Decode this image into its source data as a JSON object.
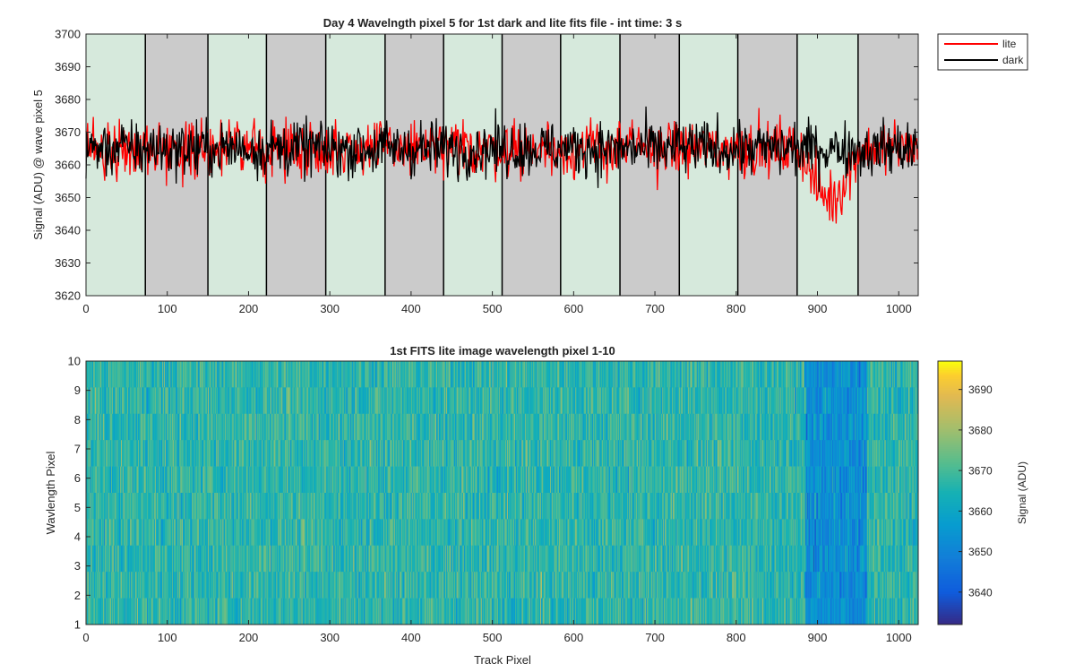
{
  "chart_data": [
    {
      "type": "line",
      "title": "Day 4 Wavelngth pixel 5 for 1st dark and lite fits file - int time: 3 s",
      "xlabel": "",
      "ylabel": "Signal (ADU) @ wave pixel 5",
      "xlim": [
        0,
        1024
      ],
      "ylim": [
        3620,
        3700
      ],
      "xticks": [
        0,
        100,
        200,
        300,
        400,
        500,
        600,
        700,
        800,
        900,
        1000
      ],
      "yticks": [
        3620,
        3630,
        3640,
        3650,
        3660,
        3670,
        3680,
        3690,
        3700
      ],
      "xtick_labels": [
        "0",
        "100",
        "200",
        "300",
        "400",
        "500",
        "600",
        "700",
        "800",
        "900",
        "1000"
      ],
      "ytick_labels": [
        "3620",
        "3630",
        "3640",
        "3650",
        "3660",
        "3670",
        "3680",
        "3690",
        "3700"
      ],
      "legend_location": "outside top-right",
      "segments": [
        {
          "start": 0,
          "end": 73,
          "state": "lite",
          "color": "#d6e9dc"
        },
        {
          "start": 73,
          "end": 150,
          "state": "dark",
          "color": "#cbcbcb"
        },
        {
          "start": 150,
          "end": 222,
          "state": "lite",
          "color": "#d6e9dc"
        },
        {
          "start": 222,
          "end": 295,
          "state": "dark",
          "color": "#cbcbcb"
        },
        {
          "start": 295,
          "end": 368,
          "state": "lite",
          "color": "#d6e9dc"
        },
        {
          "start": 368,
          "end": 440,
          "state": "dark",
          "color": "#cbcbcb"
        },
        {
          "start": 440,
          "end": 512,
          "state": "lite",
          "color": "#d6e9dc"
        },
        {
          "start": 512,
          "end": 584,
          "state": "dark",
          "color": "#cbcbcb"
        },
        {
          "start": 584,
          "end": 657,
          "state": "lite",
          "color": "#d6e9dc"
        },
        {
          "start": 657,
          "end": 730,
          "state": "dark",
          "color": "#cbcbcb"
        },
        {
          "start": 730,
          "end": 802,
          "state": "lite",
          "color": "#d6e9dc"
        },
        {
          "start": 802,
          "end": 875,
          "state": "dark",
          "color": "#cbcbcb"
        },
        {
          "start": 875,
          "end": 950,
          "state": "lite",
          "color": "#d6e9dc"
        },
        {
          "start": 950,
          "end": 1024,
          "state": "dark",
          "color": "#cbcbcb"
        }
      ],
      "series": [
        {
          "name": "lite",
          "color": "#ff0000",
          "n_points": 1024,
          "baseline": 3665,
          "noise_range": [
            3632,
            3690
          ],
          "dip_region": [
            880,
            950
          ],
          "dip_level": 3650
        },
        {
          "name": "dark",
          "color": "#000000",
          "n_points": 1024,
          "baseline": 3665,
          "noise_range": [
            3644,
            3687
          ]
        }
      ]
    },
    {
      "type": "heatmap",
      "title": "1st FITS lite image wavelength pixel 1-10",
      "xlabel": "Track Pixel",
      "ylabel": "Wavlength Pixel",
      "xlim": [
        0,
        1024
      ],
      "ylim": [
        1,
        10
      ],
      "xticks": [
        0,
        100,
        200,
        300,
        400,
        500,
        600,
        700,
        800,
        900,
        1000
      ],
      "yticks": [
        1,
        2,
        3,
        4,
        5,
        6,
        7,
        8,
        9,
        10
      ],
      "xtick_labels": [
        "0",
        "100",
        "200",
        "300",
        "400",
        "500",
        "600",
        "700",
        "800",
        "900",
        "1000"
      ],
      "ytick_labels": [
        "1",
        "2",
        "3",
        "4",
        "5",
        "6",
        "7",
        "8",
        "9",
        "10"
      ],
      "rows": 10,
      "columns": 1024,
      "baseline": 3667,
      "low_region": [
        885,
        960
      ],
      "colorbar": {
        "label": "Signal (ADU)",
        "range": [
          3632,
          3697
        ],
        "ticks": [
          3640,
          3650,
          3660,
          3670,
          3680,
          3690
        ],
        "tick_labels": [
          "3640",
          "3650",
          "3660",
          "3670",
          "3680",
          "3690"
        ],
        "colormap": "parula"
      }
    }
  ]
}
